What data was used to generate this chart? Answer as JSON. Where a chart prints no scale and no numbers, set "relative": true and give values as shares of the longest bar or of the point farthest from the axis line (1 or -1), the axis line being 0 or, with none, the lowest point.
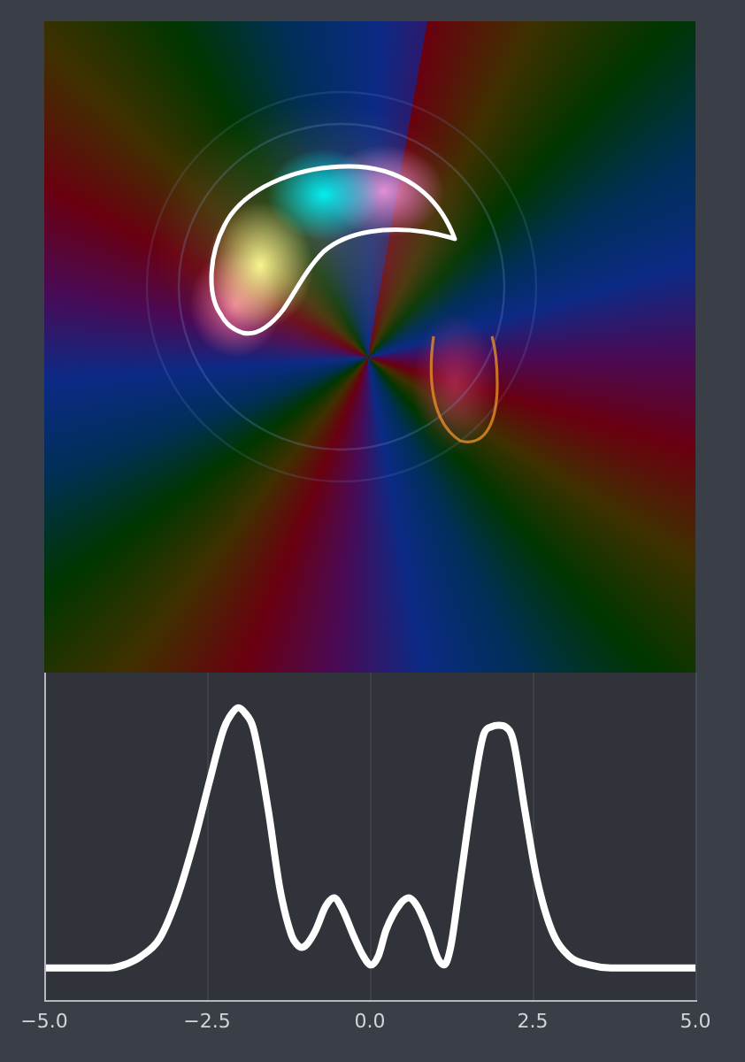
{
  "chart_data": {
    "type": "line",
    "relative": true,
    "x": [
      -5.0,
      -4.5,
      -4.0,
      -3.78,
      -3.51,
      -3.23,
      -2.96,
      -2.69,
      -2.46,
      -2.24,
      -2.12,
      -2.02,
      -1.91,
      -1.79,
      -1.56,
      -1.38,
      -1.2,
      -1.12,
      -1.05,
      -0.97,
      -0.83,
      -0.68,
      -0.55,
      -0.42,
      -0.25,
      -0.1,
      0.02,
      0.13,
      0.25,
      0.47,
      0.6,
      0.73,
      0.89,
      1.05,
      1.14,
      1.24,
      1.39,
      1.57,
      1.75,
      1.87,
      1.98,
      2.08,
      2.2,
      2.38,
      2.56,
      2.79,
      3.06,
      3.38,
      3.7,
      4.5,
      5.0
    ],
    "values": [
      0.11,
      0.11,
      0.11,
      0.12,
      0.15,
      0.21,
      0.35,
      0.55,
      0.75,
      0.93,
      0.98,
      1.0,
      0.98,
      0.93,
      0.65,
      0.38,
      0.22,
      0.19,
      0.18,
      0.19,
      0.24,
      0.32,
      0.35,
      0.31,
      0.22,
      0.15,
      0.12,
      0.15,
      0.24,
      0.33,
      0.35,
      0.32,
      0.24,
      0.14,
      0.12,
      0.18,
      0.41,
      0.69,
      0.91,
      0.935,
      0.94,
      0.935,
      0.89,
      0.65,
      0.42,
      0.24,
      0.15,
      0.12,
      0.11,
      0.11,
      0.11
    ],
    "color": "#ffffff",
    "xlim": [
      -5,
      5
    ],
    "xticks": [
      {
        "value": -5,
        "label": "−5.0"
      },
      {
        "value": -2.5,
        "label": "−2.5"
      },
      {
        "value": 0,
        "label": "0.0"
      },
      {
        "value": 2.5,
        "label": "2.5"
      },
      {
        "value": 5,
        "label": "5.0"
      }
    ],
    "grid": "x",
    "marker": "none",
    "line_style": "solid"
  }
}
